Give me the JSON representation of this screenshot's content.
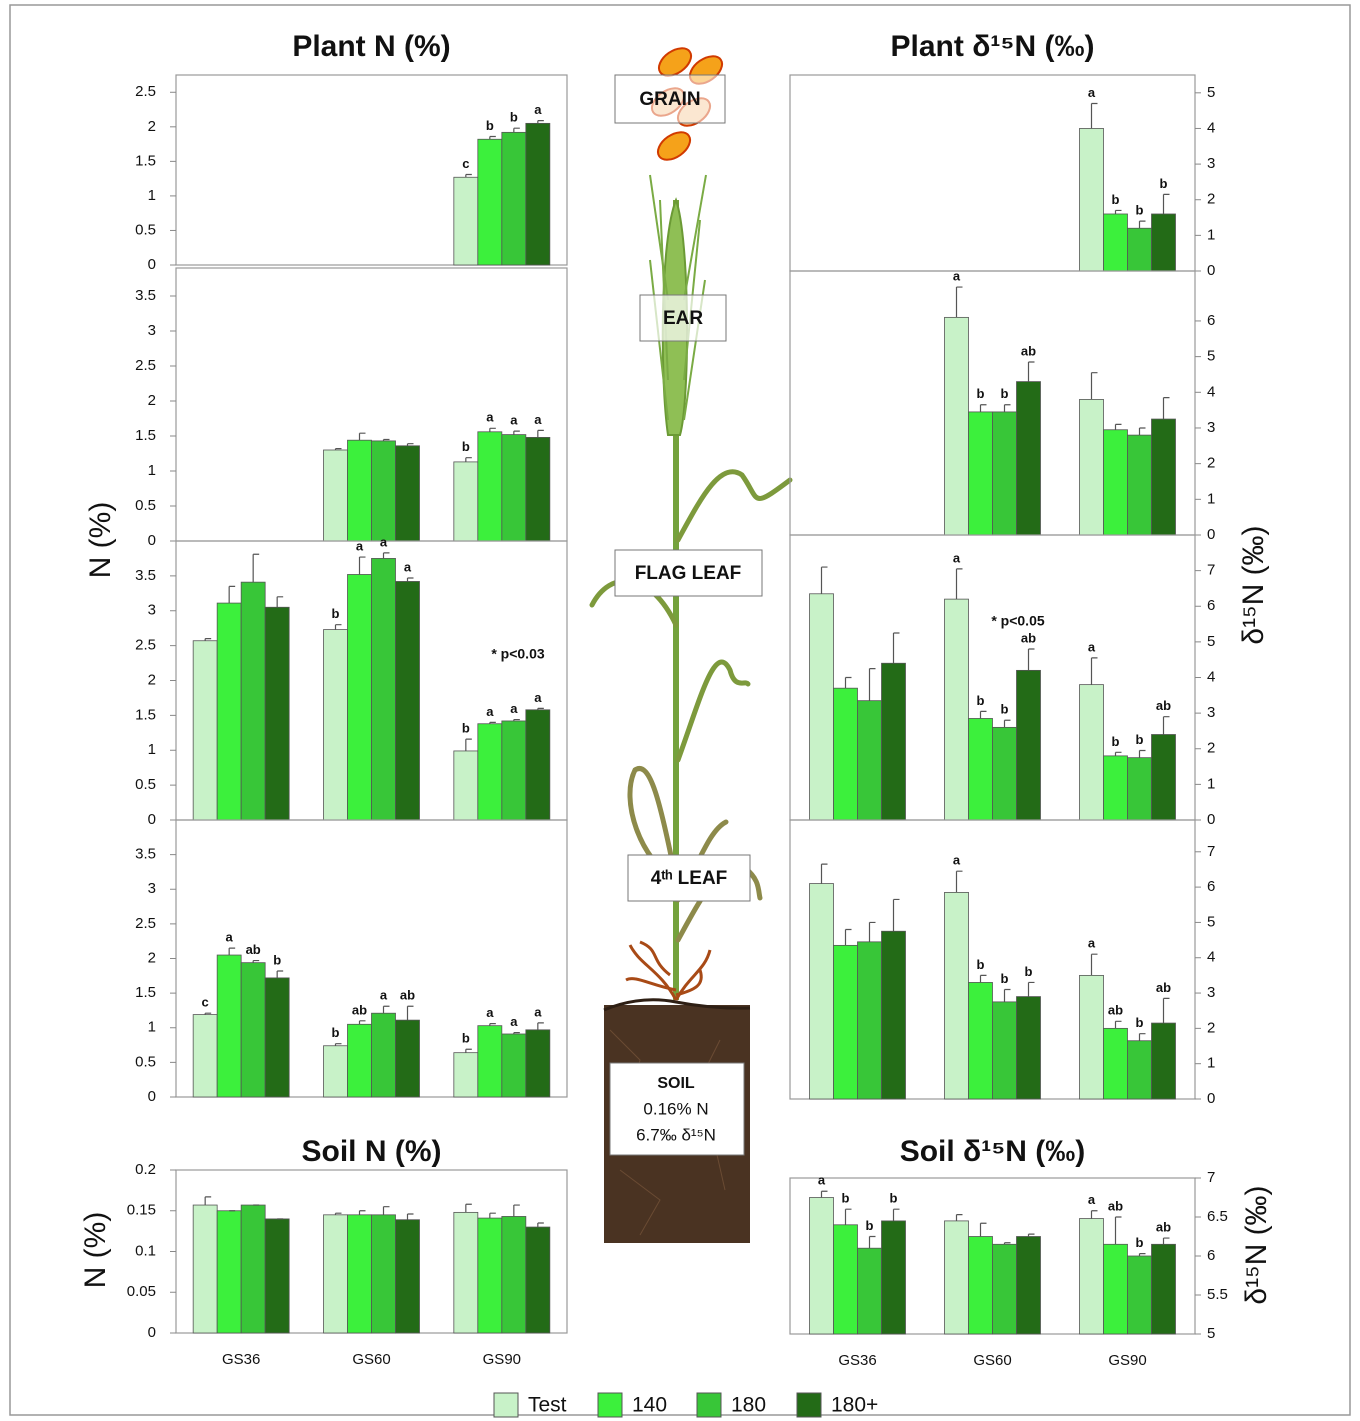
{
  "legend": [
    {
      "name": "Test",
      "color": "#c8f2c8"
    },
    {
      "name": "140",
      "color": "#3cf03c"
    },
    {
      "name": "180",
      "color": "#38c638"
    },
    {
      "name": "180+",
      "color": "#236b17"
    }
  ],
  "plant_labels": [
    "GRAIN",
    "EAR",
    "FLAG LEAF",
    "4ᵗʰ LEAF"
  ],
  "soil_box": {
    "title": "SOIL",
    "n": "0.16% N",
    "d15n": "6.7‰ δ¹⁵N"
  },
  "chart_data": [
    {
      "type": "bar",
      "title": "Plant N (%)",
      "ylim": [
        0,
        2.75
      ],
      "yticks": [
        0,
        0.5,
        1,
        1.5,
        2,
        2.5
      ],
      "series": [
        {
          "values": [
            null,
            null,
            1.27
          ],
          "errors": [
            null,
            null,
            0.04
          ],
          "letters": [
            null,
            null,
            "c"
          ]
        },
        {
          "values": [
            null,
            null,
            1.82
          ],
          "errors": [
            null,
            null,
            0.04
          ],
          "letters": [
            null,
            null,
            "b"
          ]
        },
        {
          "values": [
            null,
            null,
            1.92
          ],
          "errors": [
            null,
            null,
            0.06
          ],
          "letters": [
            null,
            null,
            "b"
          ]
        },
        {
          "values": [
            null,
            null,
            2.05
          ],
          "errors": [
            null,
            null,
            0.04
          ],
          "letters": [
            null,
            null,
            "a"
          ]
        }
      ]
    },
    {
      "type": "bar",
      "ylim": [
        0,
        3.9
      ],
      "yticks": [
        0,
        0.5,
        1,
        1.5,
        2,
        2.5,
        3,
        3.5
      ],
      "series": [
        {
          "values": [
            null,
            1.3,
            1.13
          ],
          "errors": [
            null,
            0.02,
            0.06
          ],
          "letters": [
            null,
            null,
            "b"
          ]
        },
        {
          "values": [
            null,
            1.44,
            1.56
          ],
          "errors": [
            null,
            0.1,
            0.05
          ],
          "letters": [
            null,
            null,
            "a"
          ]
        },
        {
          "values": [
            null,
            1.43,
            1.52
          ],
          "errors": [
            null,
            0.02,
            0.05
          ],
          "letters": [
            null,
            null,
            "a"
          ]
        },
        {
          "values": [
            null,
            1.36,
            1.48
          ],
          "errors": [
            null,
            0.03,
            0.1
          ],
          "letters": [
            null,
            null,
            "a"
          ]
        }
      ]
    },
    {
      "type": "bar",
      "ylabel": "N (%)",
      "annotation": "* p<0.03",
      "ylim": [
        0,
        4
      ],
      "yticks": [
        0,
        0.5,
        1,
        1.5,
        2,
        2.5,
        3,
        3.5
      ],
      "series": [
        {
          "values": [
            2.57,
            2.73,
            0.99
          ],
          "errors": [
            0.03,
            0.07,
            0.17
          ],
          "letters": [
            null,
            "b",
            "b"
          ]
        },
        {
          "values": [
            3.11,
            3.52,
            1.38
          ],
          "errors": [
            0.24,
            0.25,
            0.02
          ],
          "letters": [
            null,
            "a",
            "a"
          ]
        },
        {
          "values": [
            3.41,
            3.75,
            1.42
          ],
          "errors": [
            0.4,
            0.08,
            0.02
          ],
          "letters": [
            null,
            "a",
            "a"
          ]
        },
        {
          "values": [
            3.05,
            3.42,
            1.58
          ],
          "errors": [
            0.15,
            0.05,
            0.02
          ],
          "letters": [
            null,
            "a",
            "a"
          ]
        }
      ]
    },
    {
      "type": "bar",
      "ylim": [
        0,
        4
      ],
      "yticks": [
        0,
        0.5,
        1,
        1.5,
        2,
        2.5,
        3,
        3.5
      ],
      "series": [
        {
          "values": [
            1.19,
            0.74,
            0.64
          ],
          "errors": [
            0.02,
            0.03,
            0.05
          ],
          "letters": [
            "c",
            "b",
            "b"
          ]
        },
        {
          "values": [
            2.05,
            1.05,
            1.03
          ],
          "errors": [
            0.1,
            0.05,
            0.03
          ],
          "letters": [
            "a",
            "ab",
            "a"
          ]
        },
        {
          "values": [
            1.94,
            1.21,
            0.91
          ],
          "errors": [
            0.03,
            0.1,
            0.02
          ],
          "letters": [
            "ab",
            "a",
            "a"
          ]
        },
        {
          "values": [
            1.72,
            1.11,
            0.97
          ],
          "errors": [
            0.1,
            0.2,
            0.1
          ],
          "letters": [
            "b",
            "ab",
            "a"
          ]
        }
      ]
    },
    {
      "type": "bar",
      "title": "Soil N (%)",
      "ylabel": "N (%)",
      "categories": [
        "GS36",
        "GS60",
        "GS90"
      ],
      "ylim": [
        0,
        0.2
      ],
      "yticks": [
        0,
        0.05,
        0.1,
        0.15,
        0.2
      ],
      "series": [
        {
          "values": [
            0.157,
            0.145,
            0.148
          ],
          "errors": [
            0.01,
            0.002,
            0.01
          ]
        },
        {
          "values": [
            0.15,
            0.145,
            0.141
          ],
          "errors": [
            0,
            0.005,
            0.006
          ]
        },
        {
          "values": [
            0.157,
            0.145,
            0.143
          ],
          "errors": [
            0,
            0.01,
            0.014
          ]
        },
        {
          "values": [
            0.14,
            0.139,
            0.13
          ],
          "errors": [
            0,
            0.007,
            0.005
          ]
        }
      ]
    },
    {
      "type": "bar",
      "title": "Plant δ¹⁵N (‰)",
      "ylim": [
        0,
        5.5
      ],
      "yticks": [
        0,
        1,
        2,
        3,
        4,
        5
      ],
      "series": [
        {
          "values": [
            null,
            null,
            4.0
          ],
          "errors": [
            null,
            null,
            0.7
          ],
          "letters": [
            null,
            null,
            "a"
          ]
        },
        {
          "values": [
            null,
            null,
            1.6
          ],
          "errors": [
            null,
            null,
            0.1
          ],
          "letters": [
            null,
            null,
            "b"
          ]
        },
        {
          "values": [
            null,
            null,
            1.2
          ],
          "errors": [
            null,
            null,
            0.2
          ],
          "letters": [
            null,
            null,
            "b"
          ]
        },
        {
          "values": [
            null,
            null,
            1.6
          ],
          "errors": [
            null,
            null,
            0.55
          ],
          "letters": [
            null,
            null,
            "b"
          ]
        }
      ]
    },
    {
      "type": "bar",
      "ylim": [
        0,
        7.4
      ],
      "yticks": [
        0,
        1,
        2,
        3,
        4,
        5,
        6
      ],
      "series": [
        {
          "values": [
            null,
            6.1,
            3.8
          ],
          "errors": [
            null,
            0.85,
            0.75
          ],
          "letters": [
            null,
            "a",
            null
          ]
        },
        {
          "values": [
            null,
            3.45,
            2.95
          ],
          "errors": [
            null,
            0.2,
            0.15
          ],
          "letters": [
            null,
            "b",
            null
          ]
        },
        {
          "values": [
            null,
            3.45,
            2.8
          ],
          "errors": [
            null,
            0.2,
            0.2
          ],
          "letters": [
            null,
            "b",
            null
          ]
        },
        {
          "values": [
            null,
            4.3,
            3.25
          ],
          "errors": [
            null,
            0.55,
            0.6
          ],
          "letters": [
            null,
            "ab",
            null
          ]
        }
      ]
    },
    {
      "type": "bar",
      "ylabel": "δ¹⁵N (‰)",
      "annotation": "* p<0.05",
      "ylim": [
        0,
        8
      ],
      "yticks": [
        0,
        1,
        2,
        3,
        4,
        5,
        6,
        7
      ],
      "series": [
        {
          "values": [
            6.35,
            6.2,
            3.8
          ],
          "errors": [
            0.75,
            0.85,
            0.75
          ],
          "letters": [
            null,
            "a",
            "a"
          ]
        },
        {
          "values": [
            3.7,
            2.85,
            1.8
          ],
          "errors": [
            0.3,
            0.2,
            0.1
          ],
          "letters": [
            null,
            "b",
            "b"
          ]
        },
        {
          "values": [
            3.35,
            2.6,
            1.75
          ],
          "errors": [
            0.9,
            0.2,
            0.2
          ],
          "letters": [
            null,
            "b",
            "b"
          ]
        },
        {
          "values": [
            4.4,
            4.2,
            2.4
          ],
          "errors": [
            0.85,
            0.6,
            0.5
          ],
          "letters": [
            null,
            "ab",
            "ab"
          ]
        }
      ]
    },
    {
      "type": "bar",
      "ylim": [
        0,
        7.9
      ],
      "yticks": [
        0,
        1,
        2,
        3,
        4,
        5,
        6,
        7
      ],
      "series": [
        {
          "values": [
            6.1,
            5.85,
            3.5
          ],
          "errors": [
            0.55,
            0.6,
            0.6
          ],
          "letters": [
            null,
            "a",
            "a"
          ]
        },
        {
          "values": [
            4.35,
            3.3,
            2.0
          ],
          "errors": [
            0.45,
            0.2,
            0.2
          ],
          "letters": [
            null,
            "b",
            "ab"
          ]
        },
        {
          "values": [
            4.45,
            2.75,
            1.65
          ],
          "errors": [
            0.55,
            0.35,
            0.2
          ],
          "letters": [
            null,
            "b",
            "b"
          ]
        },
        {
          "values": [
            4.75,
            2.9,
            2.15
          ],
          "errors": [
            0.9,
            0.4,
            0.7
          ],
          "letters": [
            null,
            "b",
            "ab"
          ]
        }
      ]
    },
    {
      "type": "bar",
      "title": "Soil δ¹⁵N (‰)",
      "ylabel": "δ¹⁵N (‰)",
      "categories": [
        "GS36",
        "GS60",
        "GS90"
      ],
      "ylim": [
        5,
        7
      ],
      "yticks": [
        5,
        5.5,
        6,
        6.5,
        7
      ],
      "series": [
        {
          "values": [
            6.75,
            6.45,
            6.48
          ],
          "errors": [
            0.08,
            0.08,
            0.1
          ],
          "letters": [
            "a",
            null,
            "a"
          ]
        },
        {
          "values": [
            6.4,
            6.25,
            6.15
          ],
          "errors": [
            0.2,
            0.17,
            0.35
          ],
          "letters": [
            "b",
            null,
            "ab"
          ]
        },
        {
          "values": [
            6.1,
            6.15,
            6.0
          ],
          "errors": [
            0.15,
            0.02,
            0.03
          ],
          "letters": [
            "b",
            null,
            "b"
          ]
        },
        {
          "values": [
            6.45,
            6.25,
            6.15
          ],
          "errors": [
            0.15,
            0.03,
            0.08
          ],
          "letters": [
            "b",
            null,
            "ab"
          ]
        }
      ]
    }
  ]
}
